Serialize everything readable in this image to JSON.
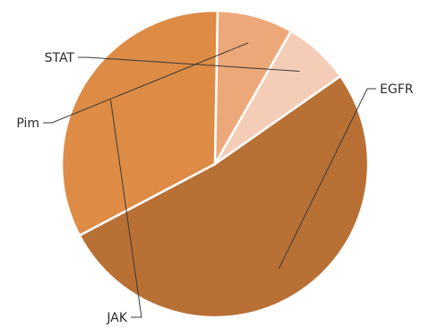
{
  "chart_data": {
    "type": "pie",
    "title": "",
    "start_angle_deg": -35,
    "direction": "clockwise",
    "slices": [
      {
        "label": "EGFR",
        "value": 52,
        "color": "#b87035"
      },
      {
        "label": "JAK",
        "value": 33,
        "color": "#dd8b45"
      },
      {
        "label": "Pim",
        "value": 8,
        "color": "#eda87a"
      },
      {
        "label": "STAT",
        "value": 7,
        "color": "#f5cdb6"
      }
    ]
  }
}
